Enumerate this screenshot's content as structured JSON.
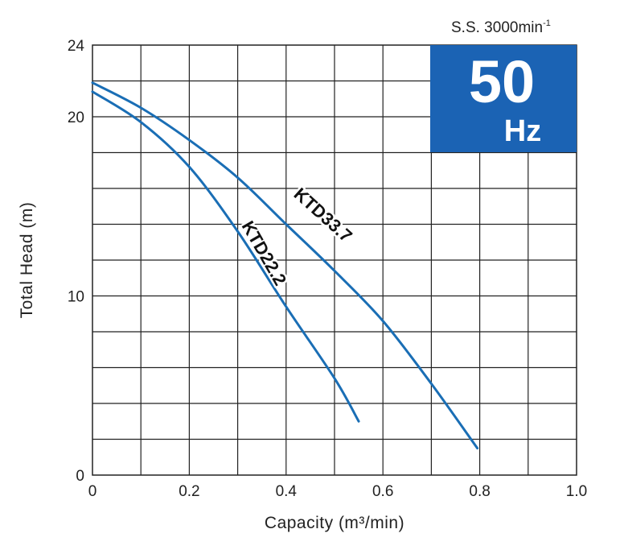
{
  "chart_data": {
    "type": "line",
    "xlabel": "Capacity (m³/min)",
    "ylabel": "Total Head (m)",
    "xlim": [
      0,
      1.0
    ],
    "ylim": [
      0,
      24
    ],
    "x_ticks": [
      "0",
      "0.2",
      "0.4",
      "0.6",
      "0.8",
      "1.0"
    ],
    "y_ticks": [
      "0",
      "10",
      "20",
      "24"
    ],
    "grid": true,
    "series": [
      {
        "name": "KTD33.7",
        "color": "#1a6eb5",
        "x": [
          0,
          0.1,
          0.2,
          0.3,
          0.4,
          0.5,
          0.6,
          0.7,
          0.795
        ],
        "y": [
          21.9,
          20.5,
          18.7,
          16.6,
          14.0,
          11.4,
          8.6,
          5.1,
          1.5
        ]
      },
      {
        "name": "KTD22.2",
        "color": "#1a6eb5",
        "x": [
          0,
          0.1,
          0.2,
          0.3,
          0.4,
          0.5,
          0.55
        ],
        "y": [
          21.4,
          19.7,
          17.2,
          13.6,
          9.4,
          5.4,
          3.0
        ]
      }
    ]
  },
  "badge": {
    "number": "50",
    "unit": "Hz",
    "color": "#1b63b4"
  },
  "speed_label": {
    "prefix": "S.S. 3000min",
    "superscript": "-1"
  }
}
